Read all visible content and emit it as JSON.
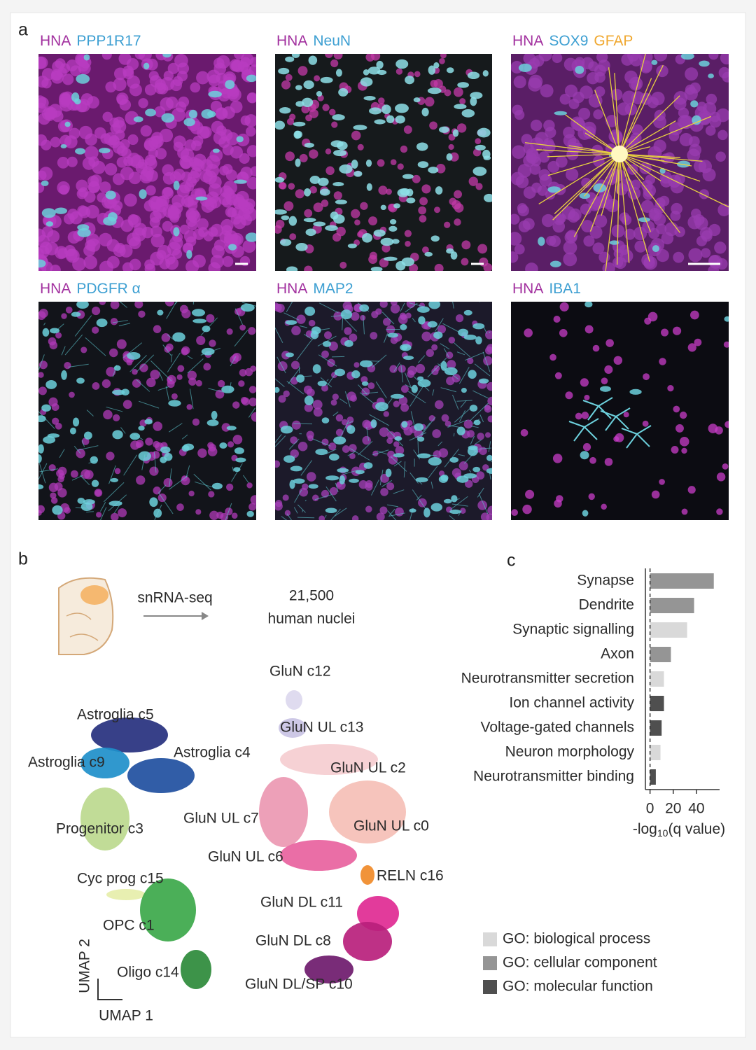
{
  "panel_a": {
    "label": "a",
    "images": [
      {
        "labels": [
          {
            "text": "HNA",
            "color": "#a2319f"
          },
          {
            "text": "PPP1R17",
            "color": "#3d9fd2"
          }
        ]
      },
      {
        "labels": [
          {
            "text": "HNA",
            "color": "#a2319f"
          },
          {
            "text": "NeuN",
            "color": "#3d9fd2"
          }
        ]
      },
      {
        "labels": [
          {
            "text": "HNA",
            "color": "#a2319f"
          },
          {
            "text": "SOX9",
            "color": "#3d9fd2"
          },
          {
            "text": "GFAP",
            "color": "#f0a830"
          }
        ]
      },
      {
        "labels": [
          {
            "text": "HNA",
            "color": "#a2319f"
          },
          {
            "text": "PDGFR α",
            "color": "#3d9fd2"
          }
        ]
      },
      {
        "labels": [
          {
            "text": "HNA",
            "color": "#a2319f"
          },
          {
            "text": "MAP2",
            "color": "#3d9fd2"
          }
        ]
      },
      {
        "labels": [
          {
            "text": "HNA",
            "color": "#a2319f"
          },
          {
            "text": "IBA1",
            "color": "#3d9fd2"
          }
        ]
      }
    ]
  },
  "panel_b": {
    "label": "b",
    "method": "snRNA-seq",
    "count": "21,500",
    "count_unit": "human nuclei",
    "clusters": [
      {
        "name": "Astroglia c5",
        "color": "#26307e"
      },
      {
        "name": "Astroglia c9",
        "color": "#1e8fca"
      },
      {
        "name": "Astroglia c4",
        "color": "#1f4fa0"
      },
      {
        "name": "Progenitor c3",
        "color": "#bcd98e"
      },
      {
        "name": "Cyc prog c15",
        "color": "#e6eeaa"
      },
      {
        "name": "OPC c1",
        "color": "#3ca84a"
      },
      {
        "name": "Oligo c14",
        "color": "#2c8a3a"
      },
      {
        "name": "GluN c12",
        "color": "#dcd8ee"
      },
      {
        "name": "GluN UL c13",
        "color": "#c9c3e4"
      },
      {
        "name": "GluN UL c2",
        "color": "#f5cdd0"
      },
      {
        "name": "GluN UL c7",
        "color": "#eb98b2"
      },
      {
        "name": "GluN UL c0",
        "color": "#f5bfb6"
      },
      {
        "name": "GluN UL c6",
        "color": "#e8629e"
      },
      {
        "name": "RELN c16",
        "color": "#f08a28"
      },
      {
        "name": "GluN DL c11",
        "color": "#e02a92"
      },
      {
        "name": "GluN DL c8",
        "color": "#b8207c"
      },
      {
        "name": "GluN DL/SP c10",
        "color": "#6e1a6c"
      }
    ],
    "xlabel": "UMAP 1",
    "ylabel": "UMAP 2"
  },
  "chart_data": {
    "type": "bar",
    "orientation": "horizontal",
    "label": "c",
    "categories": [
      "Synapse",
      "Dendrite",
      "Synaptic signalling",
      "Axon",
      "Neurotransmitter secretion",
      "Ion channel activity",
      "Voltage-gated channels",
      "Neuron morphology",
      "Neurotransmitter binding"
    ],
    "series": [
      {
        "name": "GO: biological process",
        "color": "#d9d9d9",
        "values": [
          null,
          null,
          32,
          null,
          12,
          null,
          null,
          9,
          null
        ]
      },
      {
        "name": "GO: cellular component",
        "color": "#959595",
        "values": [
          55,
          38,
          null,
          18,
          null,
          null,
          null,
          null,
          null
        ]
      },
      {
        "name": "GO: molecular function",
        "color": "#4f4f4f",
        "values": [
          null,
          null,
          null,
          null,
          null,
          12,
          10,
          null,
          5
        ]
      }
    ],
    "xlabel": [
      "-log",
      "10",
      "(q value)"
    ],
    "xlim": [
      -4,
      60
    ],
    "xticks": [
      0,
      20,
      40
    ]
  }
}
